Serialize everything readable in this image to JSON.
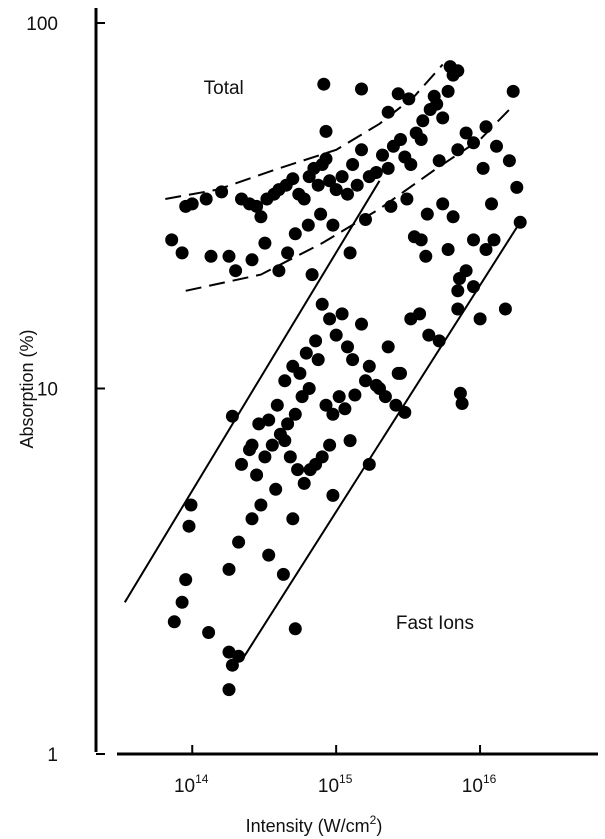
{
  "chart_data": {
    "type": "scatter",
    "xlabel": {
      "text": "Intensity (W/cm",
      "sup": "2",
      "close": ")"
    },
    "ylabel": "Absorption (%)",
    "x_scale": "log",
    "y_scale": "log",
    "xlim": [
      30000000000000.0,
      6.6e+16
    ],
    "ylim": [
      1,
      100
    ],
    "x_ticks": [
      {
        "value": 100000000000000.0,
        "base": "10",
        "exp": "14"
      },
      {
        "value": 1000000000000000.0,
        "base": "10",
        "exp": "15"
      },
      {
        "value": 1e+16,
        "base": "10",
        "exp": "16"
      }
    ],
    "y_ticks": [
      {
        "value": 1,
        "label": "1"
      },
      {
        "value": 10,
        "label": "10"
      },
      {
        "value": 100,
        "label": "100"
      }
    ],
    "annotations": [
      {
        "text": "Total",
        "x": 120000000000000.0,
        "y": 64
      },
      {
        "text": "Fast Ions",
        "x": 2600000000000000.0,
        "y": 2.2
      }
    ],
    "curves": [
      {
        "style": "dashed",
        "points": [
          [
            65000000000000.0,
            33
          ],
          [
            150000000000000.0,
            35
          ],
          [
            400000000000000.0,
            40
          ],
          [
            1000000000000000.0,
            45
          ],
          [
            2000000000000000.0,
            53
          ],
          [
            3500000000000000.0,
            63
          ],
          [
            5500000000000000.0,
            77
          ]
        ]
      },
      {
        "style": "dashed",
        "points": [
          [
            90000000000000.0,
            18.5
          ],
          [
            300000000000000.0,
            20.5
          ],
          [
            800000000000000.0,
            25
          ],
          [
            2000000000000000.0,
            31
          ],
          [
            5000000000000000.0,
            40
          ],
          [
            1e+16,
            48
          ],
          [
            1.6e+16,
            58
          ]
        ]
      },
      {
        "style": "solid",
        "points": [
          [
            34000000000000.0,
            2.6
          ],
          [
            2000000000000000.0,
            37
          ]
        ]
      },
      {
        "style": "solid",
        "points": [
          [
            230000000000000.0,
            1.85
          ],
          [
            1.95e+16,
            29
          ]
        ]
      }
    ],
    "points": [
      [
        72000000000000.0,
        25.5
      ],
      [
        85000000000000.0,
        23.5
      ],
      [
        90000000000000.0,
        31.5
      ],
      [
        100000000000000.0,
        32
      ],
      [
        125000000000000.0,
        33
      ],
      [
        160000000000000.0,
        34.5
      ],
      [
        180000000000000.0,
        23
      ],
      [
        200000000000000.0,
        21
      ],
      [
        220000000000000.0,
        33
      ],
      [
        250000000000000.0,
        32
      ],
      [
        280000000000000.0,
        31.5
      ],
      [
        300000000000000.0,
        29.5
      ],
      [
        330000000000000.0,
        33
      ],
      [
        370000000000000.0,
        34
      ],
      [
        400000000000000.0,
        35
      ],
      [
        450000000000000.0,
        36
      ],
      [
        500000000000000.0,
        37.5
      ],
      [
        550000000000000.0,
        34
      ],
      [
        600000000000000.0,
        33
      ],
      [
        650000000000000.0,
        38
      ],
      [
        700000000000000.0,
        40
      ],
      [
        750000000000000.0,
        36
      ],
      [
        800000000000000.0,
        41
      ],
      [
        850000000000000.0,
        42.5
      ],
      [
        900000000000000.0,
        37
      ],
      [
        1000000000000000.0,
        35
      ],
      [
        1100000000000000.0,
        38
      ],
      [
        1200000000000000.0,
        34
      ],
      [
        1300000000000000.0,
        41
      ],
      [
        1400000000000000.0,
        36
      ],
      [
        1500000000000000.0,
        45
      ],
      [
        1700000000000000.0,
        38
      ],
      [
        1900000000000000.0,
        39
      ],
      [
        2100000000000000.0,
        43.5
      ],
      [
        2300000000000000.0,
        40
      ],
      [
        2500000000000000.0,
        46
      ],
      [
        2800000000000000.0,
        48
      ],
      [
        3000000000000000.0,
        43
      ],
      [
        3300000000000000.0,
        41
      ],
      [
        3600000000000000.0,
        50
      ],
      [
        4000000000000000.0,
        54
      ],
      [
        4500000000000000.0,
        58
      ],
      [
        5000000000000000.0,
        60
      ],
      [
        5500000000000000.0,
        55
      ],
      [
        6000000000000000.0,
        65
      ],
      [
        6500000000000000.0,
        72
      ],
      [
        7000000000000000.0,
        45
      ],
      [
        8000000000000000.0,
        50
      ],
      [
        9000000000000000.0,
        47
      ],
      [
        1.1e+16,
        52
      ],
      [
        1.3e+16,
        46
      ],
      [
        1.6e+16,
        42
      ],
      [
        1.8e+16,
        35.5
      ],
      [
        1.7e+16,
        65
      ],
      [
        820000000000000.0,
        68
      ],
      [
        1500000000000000.0,
        66
      ],
      [
        2700000000000000.0,
        64
      ],
      [
        3200000000000000.0,
        62
      ],
      [
        4800000000000000.0,
        63
      ],
      [
        6200000000000000.0,
        76
      ],
      [
        7000000000000000.0,
        74
      ],
      [
        850000000000000.0,
        50.5
      ],
      [
        2300000000000000.0,
        57
      ],
      [
        3900000000000000.0,
        48
      ],
      [
        5200000000000000.0,
        42
      ],
      [
        1.05e+16,
        40
      ],
      [
        1.2e+16,
        32
      ],
      [
        135000000000000.0,
        23
      ],
      [
        260000000000000.0,
        22.5
      ],
      [
        320000000000000.0,
        25
      ],
      [
        460000000000000.0,
        23.5
      ],
      [
        520000000000000.0,
        26.5
      ],
      [
        640000000000000.0,
        28
      ],
      [
        780000000000000.0,
        30
      ],
      [
        950000000000000.0,
        28
      ],
      [
        1250000000000000.0,
        23.5
      ],
      [
        1600000000000000.0,
        29
      ],
      [
        2400000000000000.0,
        31.5
      ],
      [
        3100000000000000.0,
        33
      ],
      [
        3500000000000000.0,
        26
      ],
      [
        3900000000000000.0,
        25.5
      ],
      [
        4300000000000000.0,
        30
      ],
      [
        6000000000000000.0,
        24
      ],
      [
        7200000000000000.0,
        20
      ],
      [
        8000000000000000.0,
        21
      ],
      [
        9000000000000000.0,
        25.5
      ],
      [
        1.1e+16,
        24
      ],
      [
        1.9e+16,
        28.5
      ],
      [
        1.25e+16,
        25.5
      ],
      [
        680000000000000.0,
        20.5
      ],
      [
        400000000000000.0,
        21
      ],
      [
        4200000000000000.0,
        23
      ],
      [
        5500000000000000.0,
        32
      ],
      [
        6500000000000000.0,
        29.5
      ],
      [
        800000000000000.0,
        17
      ],
      [
        900000000000000.0,
        15.5
      ],
      [
        1000000000000000.0,
        14
      ],
      [
        1100000000000000.0,
        16
      ],
      [
        1200000000000000.0,
        13
      ],
      [
        1300000000000000.0,
        12
      ],
      [
        1500000000000000.0,
        15
      ],
      [
        1700000000000000.0,
        11.5
      ],
      [
        2000000000000000.0,
        10
      ],
      [
        2300000000000000.0,
        13
      ],
      [
        2800000000000000.0,
        11
      ],
      [
        3300000000000000.0,
        15.5
      ],
      [
        3800000000000000.0,
        16
      ],
      [
        4400000000000000.0,
        14
      ],
      [
        5200000000000000.0,
        13.5
      ],
      [
        7000000000000000.0,
        16.5
      ],
      [
        1e+16,
        15.5
      ],
      [
        1.5e+16,
        16.5
      ],
      [
        7000000000000000.0,
        18.5
      ],
      [
        9000000000000000.0,
        19
      ],
      [
        750000000000000.0,
        12
      ],
      [
        650000000000000.0,
        10
      ],
      [
        580000000000000.0,
        9.5
      ],
      [
        520000000000000.0,
        8.5
      ],
      [
        460000000000000.0,
        8
      ],
      [
        410000000000000.0,
        7.5
      ],
      [
        360000000000000.0,
        7
      ],
      [
        320000000000000.0,
        6.5
      ],
      [
        280000000000000.0,
        5.8
      ],
      [
        220000000000000.0,
        6.2
      ],
      [
        260000000000000.0,
        7
      ],
      [
        340000000000000.0,
        8.2
      ],
      [
        390000000000000.0,
        9
      ],
      [
        440000000000000.0,
        10.5
      ],
      [
        500000000000000.0,
        11.5
      ],
      [
        560000000000000.0,
        11
      ],
      [
        620000000000000.0,
        12.5
      ],
      [
        720000000000000.0,
        13.5
      ],
      [
        850000000000000.0,
        9
      ],
      [
        950000000000000.0,
        8.5
      ],
      [
        1050000000000000.0,
        9.5
      ],
      [
        1150000000000000.0,
        8.8
      ],
      [
        1350000000000000.0,
        9.6
      ],
      [
        1600000000000000.0,
        10.5
      ],
      [
        1900000000000000.0,
        10.2
      ],
      [
        2200000000000000.0,
        9.5
      ],
      [
        2600000000000000.0,
        9
      ],
      [
        3000000000000000.0,
        8.6
      ],
      [
        900000000000000.0,
        7
      ],
      [
        800000000000000.0,
        6.5
      ],
      [
        720000000000000.0,
        6.2
      ],
      [
        660000000000000.0,
        6
      ],
      [
        600000000000000.0,
        5.5
      ],
      [
        540000000000000.0,
        6
      ],
      [
        480000000000000.0,
        6.5
      ],
      [
        440000000000000.0,
        7.2
      ],
      [
        380000000000000.0,
        5.3
      ],
      [
        300000000000000.0,
        4.8
      ],
      [
        260000000000000.0,
        4.4
      ],
      [
        210000000000000.0,
        3.8
      ],
      [
        180000000000000.0,
        3.2
      ],
      [
        340000000000000.0,
        3.5
      ],
      [
        430000000000000.0,
        3.1
      ],
      [
        500000000000000.0,
        4.4
      ],
      [
        1700000000000000.0,
        6.2
      ],
      [
        7300000000000000.0,
        9.7
      ],
      [
        7500000000000000.0,
        9.1
      ],
      [
        98000000000000.0,
        4.8
      ],
      [
        95000000000000.0,
        4.2
      ],
      [
        90000000000000.0,
        3
      ],
      [
        85000000000000.0,
        2.6
      ],
      [
        75000000000000.0,
        2.3
      ],
      [
        130000000000000.0,
        2.15
      ],
      [
        180000000000000.0,
        1.9
      ],
      [
        210000000000000.0,
        1.85
      ],
      [
        190000000000000.0,
        1.75
      ],
      [
        180000000000000.0,
        1.5
      ],
      [
        520000000000000.0,
        2.2
      ],
      [
        950000000000000.0,
        5.1
      ],
      [
        190000000000000.0,
        8.4
      ],
      [
        250000000000000.0,
        6.8
      ],
      [
        290000000000000.0,
        8
      ],
      [
        1250000000000000.0,
        7.2
      ],
      [
        2700000000000000.0,
        11
      ]
    ]
  }
}
